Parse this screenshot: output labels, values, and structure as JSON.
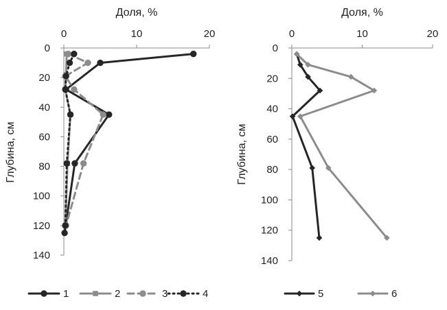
{
  "chart_data": [
    {
      "type": "line",
      "orientation": "depth-profile",
      "xlabel": "Доля, %",
      "ylabel": "Глубина, см",
      "xlim": [
        0,
        20
      ],
      "ylim": [
        0,
        140
      ],
      "y_inverted": true,
      "x_axis_position": "top",
      "xticks": [
        "0",
        "10",
        "20"
      ],
      "yticks": [
        "0",
        "20",
        "40",
        "60",
        "80",
        "100",
        "120",
        "140"
      ],
      "grid": false,
      "legend_position": "bottom",
      "series": [
        {
          "name": "1",
          "color": "#262626",
          "style": "solid",
          "marker": "circle",
          "x": [
            17.8,
            5.0,
            0.3,
            6.2,
            1.5,
            0.1
          ],
          "y": [
            4,
            10,
            28,
            45,
            78,
            125
          ]
        },
        {
          "name": "2",
          "color": "#8c8c8c",
          "style": "solid",
          "marker": "square",
          "x": [
            0.4,
            0.3,
            0.2,
            0.9,
            0.5,
            0.2
          ],
          "y": [
            4,
            18,
            28,
            45,
            78,
            120
          ]
        },
        {
          "name": "3",
          "color": "#8c8c8c",
          "style": "dashed",
          "marker": "circle",
          "x": [
            0.6,
            3.3,
            0.2,
            1.4,
            5.4,
            2.7,
            0.3
          ],
          "y": [
            4,
            10,
            19,
            28,
            45,
            78,
            120
          ]
        },
        {
          "name": "4",
          "color": "#262626",
          "style": "dotted",
          "marker": "circle",
          "x": [
            1.4,
            0.8,
            0.3,
            0.2,
            0.9,
            0.4,
            0.2
          ],
          "y": [
            4,
            10,
            19,
            28,
            45,
            78,
            120
          ]
        }
      ]
    },
    {
      "type": "line",
      "orientation": "depth-profile",
      "xlabel": "Доля, %",
      "ylabel": "Глубина, см",
      "xlim": [
        0,
        20
      ],
      "ylim": [
        0,
        140
      ],
      "y_inverted": true,
      "x_axis_position": "top",
      "xticks": [
        "0",
        "10",
        "20"
      ],
      "yticks": [
        "0",
        "20",
        "40",
        "60",
        "80",
        "100",
        "120",
        "140"
      ],
      "grid": false,
      "legend_position": "bottom",
      "series": [
        {
          "name": "5",
          "color": "#262626",
          "style": "solid",
          "marker": "diamond",
          "x": [
            0.7,
            1.2,
            2.3,
            4.0,
            0.1,
            2.9,
            3.9
          ],
          "y": [
            4,
            11,
            19,
            28,
            45,
            79,
            125
          ]
        },
        {
          "name": "6",
          "color": "#8c8c8c",
          "style": "solid",
          "marker": "diamond",
          "x": [
            0.7,
            2.3,
            8.4,
            11.7,
            1.2,
            5.2,
            13.5
          ],
          "y": [
            4,
            11,
            19,
            28,
            45,
            79,
            125
          ]
        }
      ]
    }
  ]
}
